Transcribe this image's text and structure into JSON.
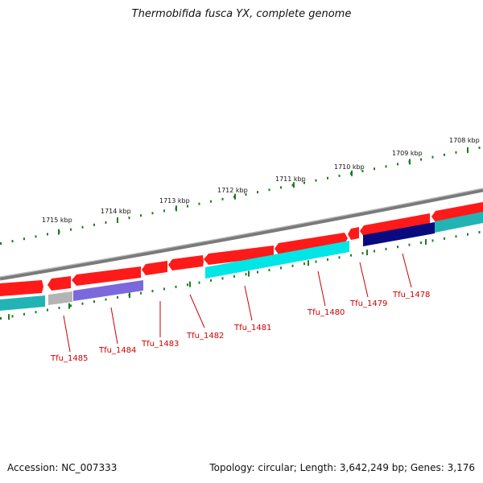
{
  "title": "Thermobifida fusca YX, complete genome",
  "footer": {
    "accession": "Accession: NC_007333",
    "summary": "Topology: circular; Length: 3,642,249 bp; Genes: 3,176"
  },
  "ruler": {
    "labels": [
      "1708 kbp",
      "1709 kbp",
      "1710 kbp",
      "1711 kbp",
      "1712 kbp",
      "1713 kbp",
      "1714 kbp",
      "1715 kbp"
    ],
    "tick_color": "#1e7d1e"
  },
  "colors": {
    "backbone": "#7a7a7a",
    "forward_feature": "#ff1a1a",
    "gene_label": "#cc0000",
    "cyan": "#00e5e5",
    "teal": "#22b4b4",
    "lavender": "#7b68dd",
    "navy": "#0a0a80",
    "grey": "#b4b4b4"
  },
  "genes": [
    {
      "label": "Tfu_1485",
      "color": "grey"
    },
    {
      "label": "Tfu_1484",
      "color": "lavender"
    },
    {
      "label": "Tfu_1483",
      "color": "none"
    },
    {
      "label": "Tfu_1482",
      "color": "none"
    },
    {
      "label": "Tfu_1481",
      "color": "cyan"
    },
    {
      "label": "Tfu_1480",
      "color": "cyan"
    },
    {
      "label": "Tfu_1479",
      "color": "none"
    },
    {
      "label": "Tfu_1478",
      "color": "navy"
    }
  ]
}
